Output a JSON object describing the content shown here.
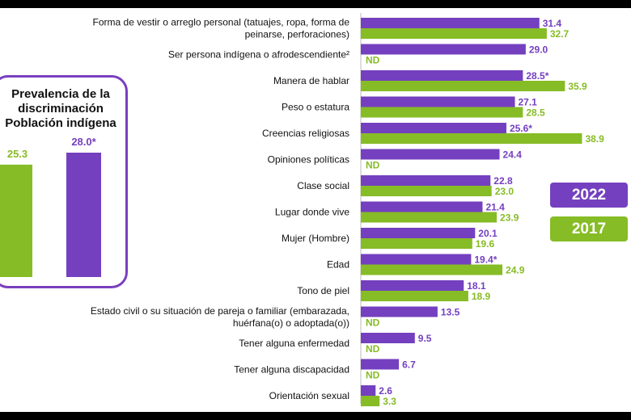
{
  "colors": {
    "series_2022": "#7440bf",
    "series_2017": "#86bc25",
    "inset_border": "#7a3fbf"
  },
  "inset": {
    "title_lines": [
      "Prevalencia de la",
      "discriminación",
      "Población indígena"
    ],
    "bars": [
      {
        "label": "25.3",
        "value": 25.3,
        "series": "2017"
      },
      {
        "label": "28.0*",
        "value": 28.0,
        "series": "2022"
      }
    ]
  },
  "legend": {
    "label_2022": "2022",
    "label_2017": "2017"
  },
  "chart_data": {
    "type": "bar",
    "orientation": "horizontal",
    "title": "",
    "xlabel": "",
    "ylabel": "",
    "xlim": [
      0,
      40
    ],
    "categories": [
      [
        "Forma de vestir o arreglo personal (tatuajes, ropa, forma de",
        "peinarse, perforaciones)"
      ],
      [
        "Ser persona indígena o afrodescendiente²"
      ],
      [
        "Manera de hablar"
      ],
      [
        "Peso o estatura"
      ],
      [
        "Creencias religiosas"
      ],
      [
        "Opiniones políticas"
      ],
      [
        "Clase social"
      ],
      [
        "Lugar donde vive"
      ],
      [
        "Mujer (Hombre)"
      ],
      [
        "Edad"
      ],
      [
        "Tono de piel"
      ],
      [
        "Estado civil o su situación de pareja o familiar (embarazada,",
        "huérfana(o) o adoptada(o))"
      ],
      [
        "Tener alguna enfermedad"
      ],
      [
        "Tener alguna discapacidad"
      ],
      [
        "Orientación sexual"
      ]
    ],
    "series": [
      {
        "name": "2022",
        "values": [
          31.4,
          29.0,
          28.5,
          27.1,
          25.6,
          24.4,
          22.8,
          21.4,
          20.1,
          19.4,
          18.1,
          13.5,
          9.5,
          6.7,
          2.6
        ],
        "labels": [
          "31.4",
          "29.0",
          "28.5*",
          "27.1",
          "25.6*",
          "24.4",
          "22.8",
          "21.4",
          "20.1",
          "19.4*",
          "18.1",
          "13.5",
          "9.5",
          "6.7",
          "2.6"
        ]
      },
      {
        "name": "2017",
        "values": [
          32.7,
          null,
          35.9,
          28.5,
          38.9,
          null,
          23.0,
          23.9,
          19.6,
          24.9,
          18.9,
          null,
          null,
          null,
          3.3
        ],
        "labels": [
          "32.7",
          "ND",
          "35.9",
          "28.5",
          "38.9",
          "ND",
          "23.0",
          "23.9",
          "19.6",
          "24.9",
          "18.9",
          "ND",
          "ND",
          "ND",
          "3.3"
        ]
      }
    ]
  }
}
